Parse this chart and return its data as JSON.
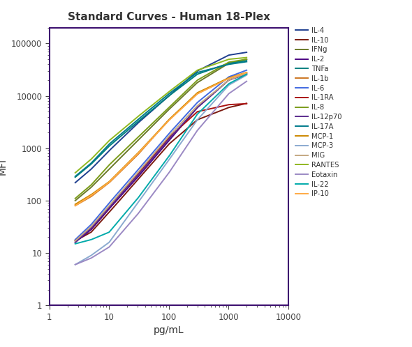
{
  "title": "Standard Curves - Human 18-Plex",
  "xlabel": "pg/mL",
  "ylabel": "MFI",
  "xlim": [
    1,
    10000
  ],
  "ylim": [
    1,
    200000
  ],
  "series": [
    {
      "label": "IL-4",
      "color": "#1F3F8F",
      "x": [
        2.7,
        5,
        10,
        30,
        100,
        300,
        1000,
        2000
      ],
      "y": [
        220,
        400,
        900,
        3000,
        10000,
        30000,
        60000,
        68000
      ]
    },
    {
      "label": "IL-10",
      "color": "#7B1A10",
      "x": [
        2.7,
        5,
        10,
        30,
        100,
        300,
        1000,
        2000
      ],
      "y": [
        17,
        25,
        60,
        250,
        1200,
        3500,
        6000,
        7200
      ]
    },
    {
      "label": "IFNg",
      "color": "#6B7A2A",
      "x": [
        2.7,
        5,
        10,
        30,
        100,
        300,
        1000,
        2000
      ],
      "y": [
        100,
        180,
        400,
        1400,
        5500,
        18000,
        42000,
        50000
      ]
    },
    {
      "label": "IL-2",
      "color": "#4B0082",
      "x": [
        2.7,
        5,
        10,
        30,
        100,
        300,
        1000,
        2000
      ],
      "y": [
        16,
        28,
        70,
        280,
        1400,
        6000,
        20000,
        26000
      ]
    },
    {
      "label": "TNFa",
      "color": "#008080",
      "x": [
        2.7,
        5,
        10,
        30,
        100,
        300,
        1000,
        2000
      ],
      "y": [
        280,
        500,
        1100,
        3200,
        10000,
        26000,
        42000,
        47000
      ]
    },
    {
      "label": "IL-1b",
      "color": "#CC7722",
      "x": [
        2.7,
        5,
        10,
        30,
        100,
        300,
        1000,
        2000
      ],
      "y": [
        80,
        120,
        220,
        750,
        3500,
        11000,
        22000,
        28000
      ]
    },
    {
      "label": "IL-6",
      "color": "#4169E1",
      "x": [
        2.7,
        5,
        10,
        30,
        100,
        300,
        1000,
        2000
      ],
      "y": [
        18,
        35,
        90,
        380,
        1900,
        7500,
        23000,
        31000
      ]
    },
    {
      "label": "IL-1RA",
      "color": "#AA1111",
      "x": [
        2.7,
        5,
        10,
        30,
        100,
        300,
        1000,
        2000
      ],
      "y": [
        17,
        30,
        75,
        320,
        1600,
        5000,
        6800,
        7100
      ]
    },
    {
      "label": "IL-8",
      "color": "#7B9C1A",
      "x": [
        2.7,
        5,
        10,
        30,
        100,
        300,
        1000,
        2000
      ],
      "y": [
        110,
        200,
        480,
        1600,
        6000,
        20000,
        44000,
        50000
      ]
    },
    {
      "label": "IL-12p70",
      "color": "#5B2D8E",
      "x": [
        2.7,
        5,
        10,
        30,
        100,
        300,
        1000,
        2000
      ],
      "y": [
        16,
        30,
        75,
        300,
        1500,
        6000,
        20000,
        27000
      ]
    },
    {
      "label": "IL-17A",
      "color": "#007B8B",
      "x": [
        2.7,
        5,
        10,
        30,
        100,
        300,
        1000,
        2000
      ],
      "y": [
        290,
        520,
        1200,
        3500,
        11000,
        28000,
        40000,
        45000
      ]
    },
    {
      "label": "MCP-1",
      "color": "#CC8800",
      "x": [
        2.7,
        5,
        10,
        30,
        100,
        300,
        1000,
        2000
      ],
      "y": [
        85,
        130,
        230,
        800,
        3500,
        11500,
        22000,
        28000
      ]
    },
    {
      "label": "MCP-3",
      "color": "#8BAAD0",
      "x": [
        2.7,
        5,
        10,
        30,
        100,
        300,
        1000,
        2000
      ],
      "y": [
        6,
        9,
        16,
        90,
        600,
        3500,
        16000,
        25000
      ]
    },
    {
      "label": "MIG",
      "color": "#C4A882",
      "x": [
        2.7,
        5,
        10,
        30,
        100,
        300,
        1000,
        2000
      ],
      "y": [
        17,
        32,
        80,
        340,
        1700,
        6500,
        20000,
        27000
      ]
    },
    {
      "label": "RANTES",
      "color": "#90B820",
      "x": [
        2.7,
        5,
        10,
        30,
        100,
        300,
        1000,
        2000
      ],
      "y": [
        340,
        620,
        1400,
        4000,
        12000,
        31000,
        50000,
        54000
      ]
    },
    {
      "label": "Eotaxin",
      "color": "#9B89C4",
      "x": [
        2.7,
        5,
        10,
        30,
        100,
        300,
        1000,
        2000
      ],
      "y": [
        6,
        8,
        13,
        55,
        340,
        2200,
        11000,
        19000
      ]
    },
    {
      "label": "IL-22",
      "color": "#00AAAA",
      "x": [
        2.7,
        5,
        10,
        30,
        100,
        300,
        1000,
        2000
      ],
      "y": [
        15,
        18,
        25,
        110,
        700,
        4500,
        17000,
        26000
      ]
    },
    {
      "label": "IP-10",
      "color": "#FFAA44",
      "x": [
        2.7,
        5,
        10,
        30,
        100,
        300,
        1000,
        2000
      ],
      "y": [
        80,
        125,
        225,
        780,
        3400,
        11000,
        21500,
        28000
      ]
    }
  ]
}
